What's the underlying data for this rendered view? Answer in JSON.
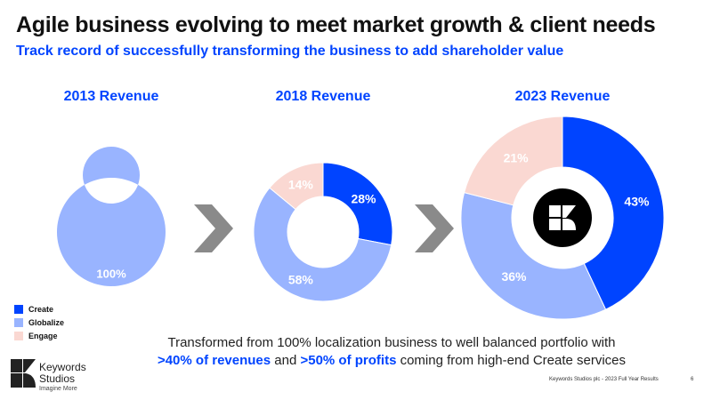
{
  "header": {
    "title": "Agile business evolving to meet market growth & client needs",
    "subtitle": "Track record of successfully transforming the business to add shareholder value"
  },
  "chart_data": [
    {
      "type": "pie",
      "donut": true,
      "title": "2013 Revenue",
      "categories": [
        "Create",
        "Globalize",
        "Engage"
      ],
      "values": [
        0,
        100,
        0
      ],
      "labels": [
        "",
        "100%",
        ""
      ]
    },
    {
      "type": "pie",
      "donut": true,
      "title": "2018 Revenue",
      "categories": [
        "Create",
        "Globalize",
        "Engage"
      ],
      "values": [
        28,
        58,
        14
      ],
      "labels": [
        "28%",
        "58%",
        "14%"
      ]
    },
    {
      "type": "pie",
      "donut": true,
      "title": "2023 Revenue",
      "categories": [
        "Create",
        "Globalize",
        "Engage"
      ],
      "values": [
        43,
        36,
        21
      ],
      "labels": [
        "43%",
        "36%",
        "21%"
      ]
    }
  ],
  "legend": {
    "placement": "bottom-left",
    "items": [
      {
        "label": "Create",
        "color": "#0044ff"
      },
      {
        "label": "Globalize",
        "color": "#99b4ff"
      },
      {
        "label": "Engage",
        "color": "#fad8d2"
      }
    ]
  },
  "footnote": {
    "line1": "Transformed from 100% localization business to well balanced portfolio with",
    "hl1": ">40% of revenues",
    "mid": " and ",
    "hl2": ">50% of profits",
    "rest": " coming from high-end Create services"
  },
  "footer": {
    "text": "Keywords Studios plc - 2023  Full Year Results",
    "page": "6"
  },
  "brand": {
    "name1": "Keywords",
    "name2": "Studios",
    "tagline": "Imagine More"
  }
}
